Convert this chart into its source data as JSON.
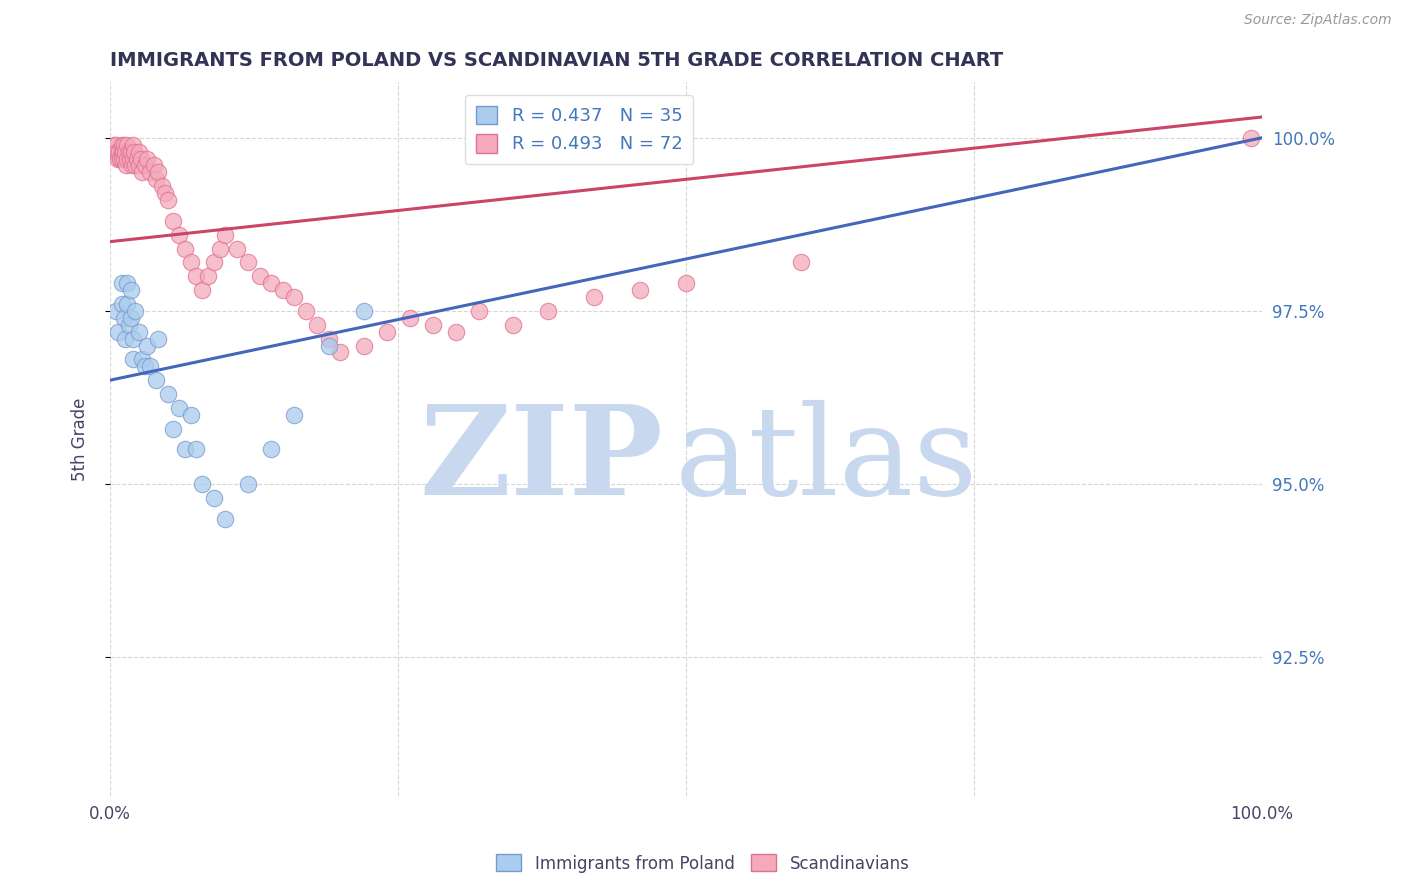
{
  "title": "IMMIGRANTS FROM POLAND VS SCANDINAVIAN 5TH GRADE CORRELATION CHART",
  "source_text": "Source: ZipAtlas.com",
  "ylabel": "5th Grade",
  "legend_entries": [
    {
      "label": "R = 0.437   N = 35",
      "color": "#aaccee"
    },
    {
      "label": "R = 0.493   N = 72",
      "color": "#f4aabb"
    }
  ],
  "legend_labels_bottom": [
    "Immigrants from Poland",
    "Scandinavians"
  ],
  "x_min": 0.0,
  "x_max": 1.0,
  "y_min": 0.905,
  "y_max": 1.008,
  "y_ticks": [
    0.925,
    0.95,
    0.975,
    1.0
  ],
  "y_tick_labels": [
    "92.5%",
    "95.0%",
    "97.5%",
    "100.0%"
  ],
  "x_ticks": [
    0.0,
    0.25,
    0.5,
    0.75,
    1.0
  ],
  "x_tick_labels": [
    "0.0%",
    "",
    "",
    "",
    "100.0%"
  ],
  "poland_color": "#aaccee",
  "poland_edge_color": "#7799cc",
  "scand_color": "#f4aabb",
  "scand_edge_color": "#e07090",
  "line_poland_color": "#4466bb",
  "line_scand_color": "#cc4466",
  "title_color": "#333355",
  "axis_label_color": "#444466",
  "right_axis_color": "#4477bb",
  "watermark_zip_color": "#c8d8ee",
  "watermark_atlas_color": "#c8d8ee",
  "watermark_text_zip": "ZIP",
  "watermark_text_atlas": "atlas",
  "poland_x": [
    0.005,
    0.007,
    0.01,
    0.01,
    0.012,
    0.013,
    0.015,
    0.015,
    0.016,
    0.018,
    0.018,
    0.02,
    0.02,
    0.022,
    0.025,
    0.028,
    0.03,
    0.032,
    0.035,
    0.04,
    0.042,
    0.05,
    0.055,
    0.06,
    0.065,
    0.07,
    0.075,
    0.08,
    0.09,
    0.1,
    0.12,
    0.14,
    0.16,
    0.19,
    0.22
  ],
  "poland_y": [
    0.975,
    0.972,
    0.979,
    0.976,
    0.974,
    0.971,
    0.979,
    0.976,
    0.973,
    0.978,
    0.974,
    0.971,
    0.968,
    0.975,
    0.972,
    0.968,
    0.967,
    0.97,
    0.967,
    0.965,
    0.971,
    0.963,
    0.958,
    0.961,
    0.955,
    0.96,
    0.955,
    0.95,
    0.948,
    0.945,
    0.95,
    0.955,
    0.96,
    0.97,
    0.975
  ],
  "scand_x": [
    0.003,
    0.004,
    0.005,
    0.006,
    0.007,
    0.008,
    0.009,
    0.01,
    0.01,
    0.01,
    0.011,
    0.012,
    0.012,
    0.013,
    0.014,
    0.015,
    0.015,
    0.016,
    0.017,
    0.018,
    0.019,
    0.02,
    0.02,
    0.021,
    0.022,
    0.023,
    0.025,
    0.025,
    0.027,
    0.028,
    0.03,
    0.032,
    0.035,
    0.038,
    0.04,
    0.042,
    0.045,
    0.048,
    0.05,
    0.055,
    0.06,
    0.065,
    0.07,
    0.075,
    0.08,
    0.085,
    0.09,
    0.095,
    0.1,
    0.11,
    0.12,
    0.13,
    0.14,
    0.15,
    0.16,
    0.17,
    0.18,
    0.19,
    0.2,
    0.22,
    0.24,
    0.26,
    0.28,
    0.3,
    0.32,
    0.35,
    0.38,
    0.42,
    0.46,
    0.5,
    0.6,
    0.99
  ],
  "scand_y": [
    0.999,
    0.998,
    0.999,
    0.998,
    0.997,
    0.998,
    0.997,
    0.999,
    0.998,
    0.997,
    0.998,
    0.999,
    0.997,
    0.998,
    0.996,
    0.999,
    0.997,
    0.998,
    0.997,
    0.998,
    0.996,
    0.999,
    0.997,
    0.998,
    0.996,
    0.997,
    0.998,
    0.996,
    0.997,
    0.995,
    0.996,
    0.997,
    0.995,
    0.996,
    0.994,
    0.995,
    0.993,
    0.992,
    0.991,
    0.988,
    0.986,
    0.984,
    0.982,
    0.98,
    0.978,
    0.98,
    0.982,
    0.984,
    0.986,
    0.984,
    0.982,
    0.98,
    0.979,
    0.978,
    0.977,
    0.975,
    0.973,
    0.971,
    0.969,
    0.97,
    0.972,
    0.974,
    0.973,
    0.972,
    0.975,
    0.973,
    0.975,
    0.977,
    0.978,
    0.979,
    0.982,
    1.0
  ],
  "poland_trend_x0": 0.0,
  "poland_trend_x1": 1.0,
  "poland_trend_y0": 0.965,
  "poland_trend_y1": 1.0,
  "scand_trend_x0": 0.0,
  "scand_trend_x1": 1.0,
  "scand_trend_y0": 0.985,
  "scand_trend_y1": 1.003,
  "figsize": [
    14.06,
    8.92
  ],
  "dpi": 100
}
